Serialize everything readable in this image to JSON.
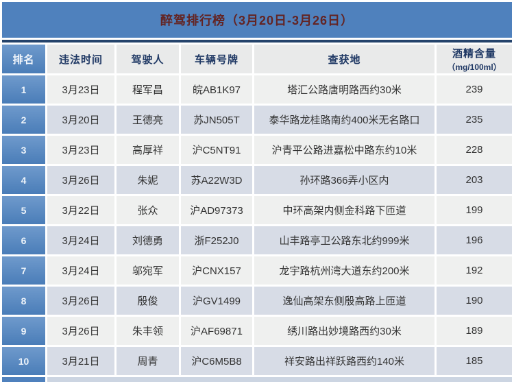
{
  "title": "醉驾排行榜（3月20日-3月26日）",
  "header": {
    "rank": "排名",
    "date": "违法时间",
    "driver": "驾驶人",
    "plate": "车辆号牌",
    "location": "查获地",
    "alcohol_line1": "酒精含量",
    "alcohol_line2": "（mg/100ml）"
  },
  "rows": [
    {
      "rank": "1",
      "date": "3月23日",
      "driver": "程军昌",
      "plate": "皖AB1K97",
      "location": "塔汇公路唐明路西约30米",
      "alcohol": "239"
    },
    {
      "rank": "2",
      "date": "3月20日",
      "driver": "王德亮",
      "plate": "苏JN505T",
      "location": "泰华路龙桂路南约400米无名路口",
      "alcohol": "235"
    },
    {
      "rank": "3",
      "date": "3月23日",
      "driver": "高厚祥",
      "plate": "沪C5NT91",
      "location": "沪青平公路进嘉松中路东约10米",
      "alcohol": "228"
    },
    {
      "rank": "4",
      "date": "3月26日",
      "driver": "朱妮",
      "plate": "苏A22W3D",
      "location": "孙环路366弄小区内",
      "alcohol": "203"
    },
    {
      "rank": "5",
      "date": "3月22日",
      "driver": "张众",
      "plate": "沪AD97373",
      "location": "中环高架内侧金科路下匝道",
      "alcohol": "199"
    },
    {
      "rank": "6",
      "date": "3月24日",
      "driver": "刘德勇",
      "plate": "浙F252J0",
      "location": "山丰路亭卫公路东北约999米",
      "alcohol": "196"
    },
    {
      "rank": "7",
      "date": "3月24日",
      "driver": "邬宛军",
      "plate": "沪CNX157",
      "location": "龙宇路杭州湾大道东约200米",
      "alcohol": "192"
    },
    {
      "rank": "8",
      "date": "3月26日",
      "driver": "殷俊",
      "plate": "沪GV1499",
      "location": "逸仙高架东侧殷高路上匝道",
      "alcohol": "190"
    },
    {
      "rank": "9",
      "date": "3月26日",
      "driver": "朱丰领",
      "plate": "沪AF69871",
      "location": "绣川路出妙境路西约30米",
      "alcohol": "189"
    },
    {
      "rank": "10",
      "date": "3月21日",
      "driver": "周青",
      "plate": "沪C6M5B8",
      "location": "祥安路出祥跃路西约140米",
      "alcohol": "185"
    }
  ],
  "colors": {
    "title_bar_blue": "#4f81bd",
    "title_text_dark_red": "#632423",
    "header_text_navy": "#1f3864",
    "header_cell_gray": "#e9eaea",
    "rank_column_blue": "#4f81bd",
    "row_odd_light": "#eff0ef",
    "row_even_blue_gray": "#d7dce6",
    "top_border_navy": "#24436b",
    "data_text": "#333333"
  },
  "chart_data": {
    "type": "table",
    "title": "醉驾排行榜（3月20日-3月26日）",
    "columns": [
      "排名",
      "违法时间",
      "驾驶人",
      "车辆号牌",
      "查获地",
      "酒精含量（mg/100ml）"
    ],
    "rows": [
      [
        "1",
        "3月23日",
        "程军昌",
        "皖AB1K97",
        "塔汇公路唐明路西约30米",
        "239"
      ],
      [
        "2",
        "3月20日",
        "王德亮",
        "苏JN505T",
        "泰华路龙桂路南约400米无名路口",
        "235"
      ],
      [
        "3",
        "3月23日",
        "高厚祥",
        "沪C5NT91",
        "沪青平公路进嘉松中路东约10米",
        "228"
      ],
      [
        "4",
        "3月26日",
        "朱妮",
        "苏A22W3D",
        "孙环路366弄小区内",
        "203"
      ],
      [
        "5",
        "3月22日",
        "张众",
        "沪AD97373",
        "中环高架内侧金科路下匝道",
        "199"
      ],
      [
        "6",
        "3月24日",
        "刘德勇",
        "浙F252J0",
        "山丰路亭卫公路东北约999米",
        "196"
      ],
      [
        "7",
        "3月24日",
        "邬宛军",
        "沪CNX157",
        "龙宇路杭州湾大道东约200米",
        "192"
      ],
      [
        "8",
        "3月26日",
        "殷俊",
        "沪GV1499",
        "逸仙高架东侧殷高路上匝道",
        "190"
      ],
      [
        "9",
        "3月26日",
        "朱丰领",
        "沪AF69871",
        "绣川路出妙境路西约30米",
        "189"
      ],
      [
        "10",
        "3月21日",
        "周青",
        "沪C6M5B8",
        "祥安路出祥跃路西约140米",
        "185"
      ]
    ]
  }
}
